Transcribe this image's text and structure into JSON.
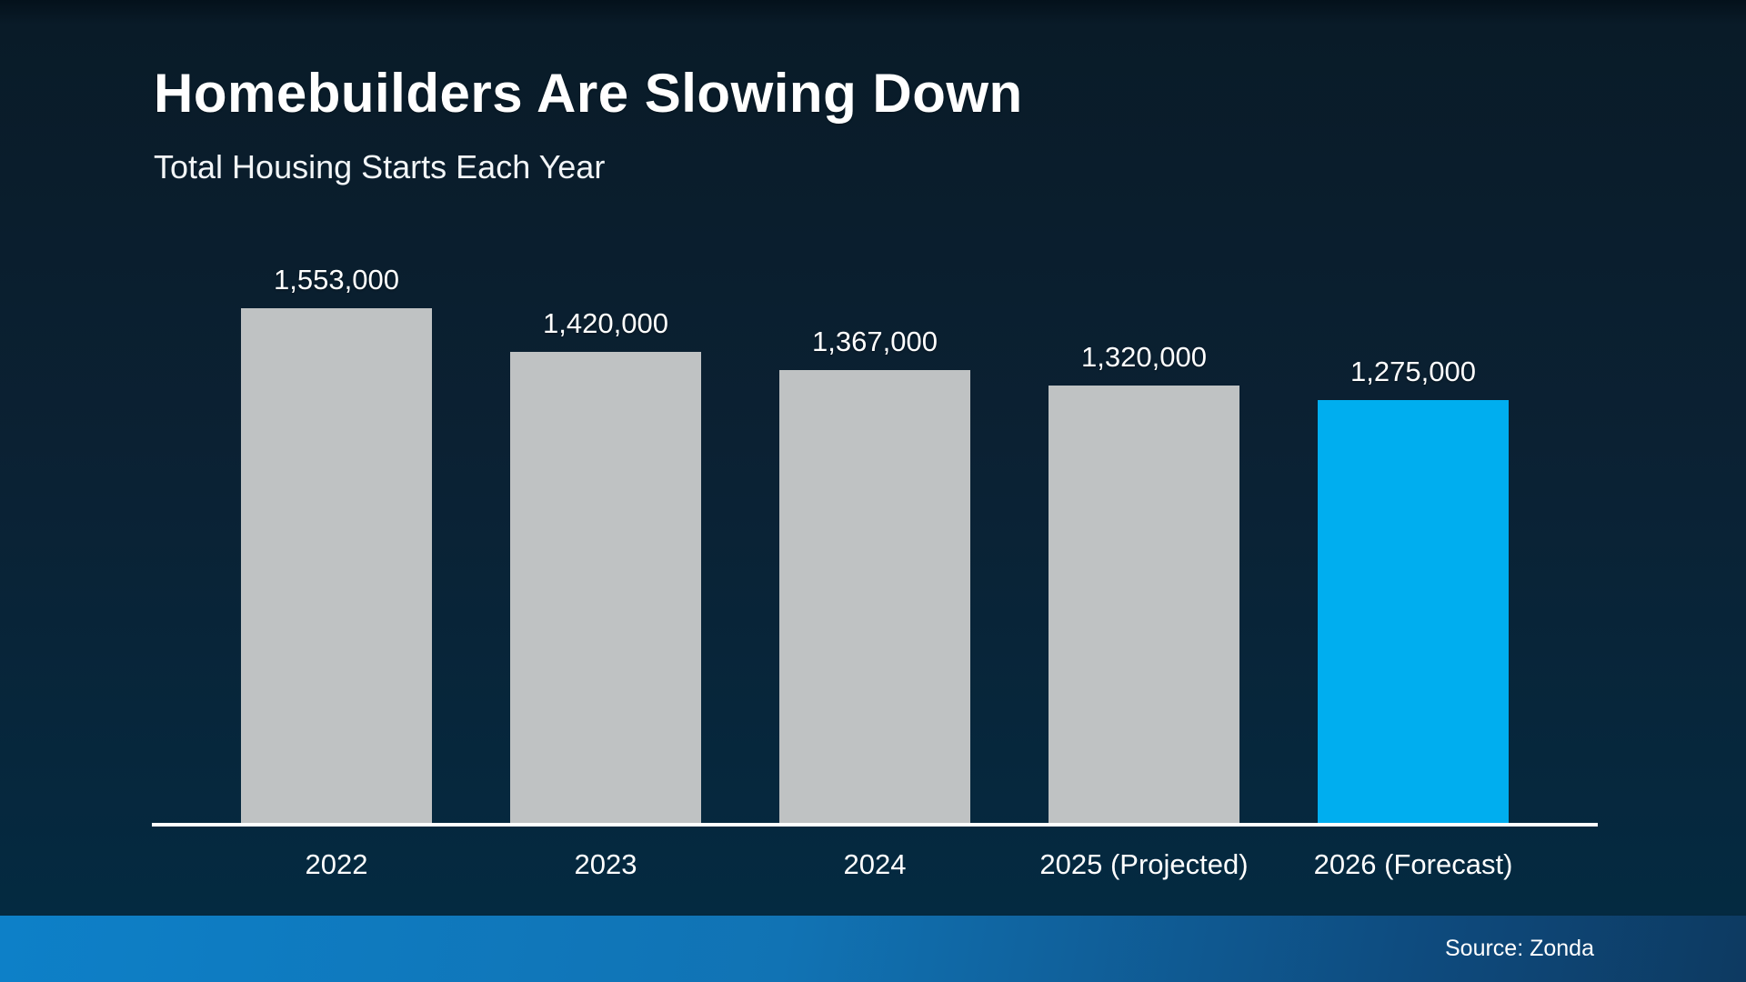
{
  "header": {
    "title": "Homebuilders Are Slowing Down",
    "subtitle": "Total Housing Starts Each Year"
  },
  "chart_data": {
    "type": "bar",
    "title": "Homebuilders Are Slowing Down",
    "subtitle": "Total Housing Starts Each Year",
    "categories": [
      "2022",
      "2023",
      "2024",
      "2025 (Projected)",
      "2026 (Forecast)"
    ],
    "values": [
      1553000,
      1420000,
      1367000,
      1320000,
      1275000
    ],
    "value_labels": [
      "1,553,000",
      "1,420,000",
      "1,367,000",
      "1,320,000",
      "1,275,000"
    ],
    "xlabel": "",
    "ylabel": "",
    "ylim": [
      0,
      1553000
    ],
    "grid": false,
    "legend": false,
    "bar_colors": [
      "#bfc2c3",
      "#bfc2c3",
      "#bfc2c3",
      "#bfc2c3",
      "#00aeef"
    ],
    "highlight_color": "#00aeef",
    "default_bar_color": "#bfc2c3"
  },
  "footer": {
    "source_label": "Source: Zonda"
  },
  "colors": {
    "background_top": "#091b28",
    "background_bottom": "#042a41",
    "axis_line": "#ffffff",
    "footer_band_left": "#0d80c8",
    "footer_band_right": "#0d3a61",
    "text": "#ffffff"
  }
}
